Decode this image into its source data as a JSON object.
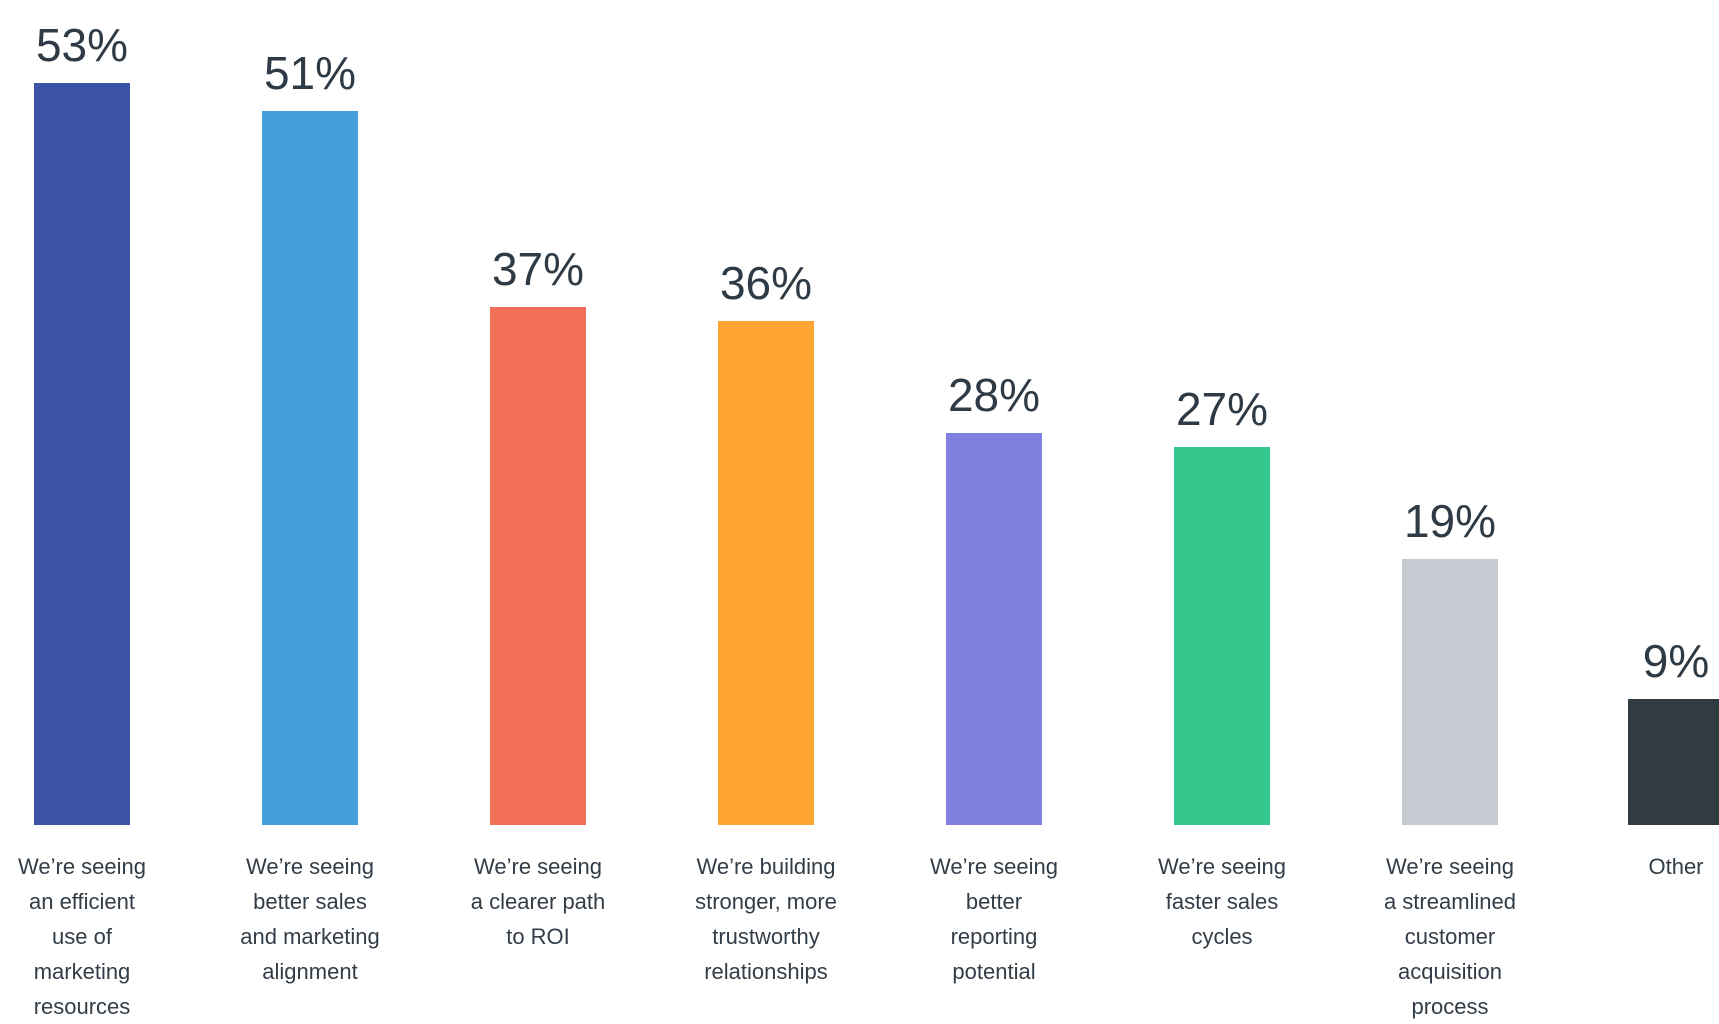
{
  "chart_data": {
    "type": "bar",
    "categories": [
      [
        "We’re seeing",
        "an efficient",
        "use of",
        "marketing",
        "resources"
      ],
      [
        "We’re seeing",
        "better sales",
        "and marketing",
        "alignment"
      ],
      [
        "We’re seeing",
        "a clearer path",
        "to ROI"
      ],
      [
        "We’re building",
        "stronger, more",
        "trustworthy",
        "relationships"
      ],
      [
        "We’re seeing",
        "better",
        "reporting",
        "potential"
      ],
      [
        "We’re seeing",
        "faster sales",
        "cycles"
      ],
      [
        "We’re seeing",
        "a streamlined",
        "customer",
        "acquisition",
        "process"
      ],
      [
        "Other"
      ]
    ],
    "values": [
      53,
      51,
      37,
      36,
      28,
      27,
      19,
      9
    ],
    "value_labels": [
      "53%",
      "51%",
      "37%",
      "36%",
      "28%",
      "27%",
      "19%",
      "9%"
    ],
    "colors": [
      "#3a53a4",
      "#459fd8",
      "#f27057",
      "#fea430",
      "#8080e0",
      "#34c88f",
      "#c6cad1",
      "#313b42"
    ],
    "title": "",
    "xlabel": "",
    "ylabel": "",
    "ylim": [
      0,
      53
    ],
    "grid": false,
    "legend": "none"
  }
}
